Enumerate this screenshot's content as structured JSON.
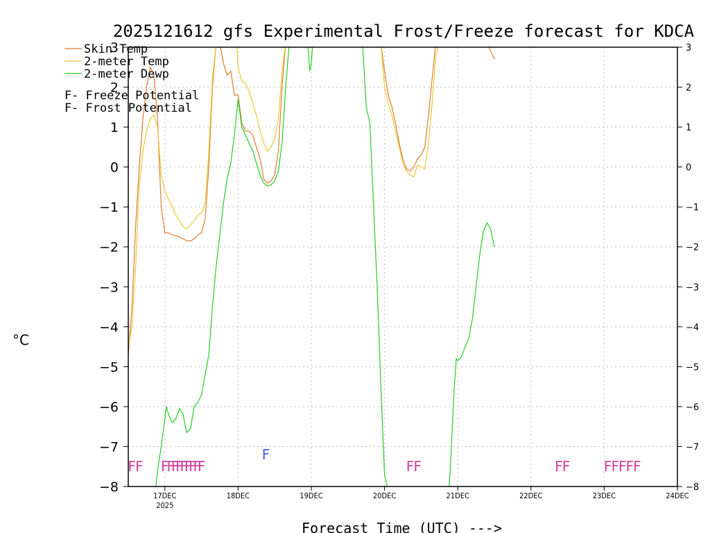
{
  "chart_data": {
    "type": "line",
    "title": "2025121612 gfs Experimental Frost/Freeze forecast for KDCA",
    "ylabel": "°C",
    "xlabel": "Forecast Time (UTC) --->",
    "ylim": [
      -8,
      3
    ],
    "xlim": [
      16.5,
      24.0
    ],
    "y_ticks": [
      -8,
      -7,
      -6,
      -5,
      -4,
      -3,
      -2,
      -1,
      0,
      1,
      2,
      3
    ],
    "x_ticks": [
      {
        "x": 17,
        "label": "17DEC",
        "sublabel": "2025"
      },
      {
        "x": 18,
        "label": "18DEC",
        "sublabel": ""
      },
      {
        "x": 19,
        "label": "19DEC",
        "sublabel": ""
      },
      {
        "x": 20,
        "label": "20DEC",
        "sublabel": ""
      },
      {
        "x": 21,
        "label": "21DEC",
        "sublabel": ""
      },
      {
        "x": 22,
        "label": "22DEC",
        "sublabel": ""
      },
      {
        "x": 23,
        "label": "23DEC",
        "sublabel": ""
      },
      {
        "x": 24,
        "label": "24DEC",
        "sublabel": ""
      }
    ],
    "grid": true,
    "legend": {
      "position": "top-left",
      "series": [
        {
          "label": "Skin Temp",
          "color": "#e07a30"
        },
        {
          "label": "2-meter Temp",
          "color": "#e8c830"
        },
        {
          "label": "2-meter Dewp",
          "color": "#22cc22"
        }
      ],
      "markers": [
        {
          "symbol": "F",
          "text": " - Freeze Potential",
          "color": "#d040a0"
        },
        {
          "symbol": "F",
          "text": " - Frost Potential",
          "color": "#4060d0"
        }
      ]
    },
    "series": [
      {
        "name": "Skin Temp",
        "color": "#e07a30",
        "points": [
          [
            16.5,
            -4.7
          ],
          [
            16.55,
            -3.5
          ],
          [
            16.6,
            -1.5
          ],
          [
            16.65,
            0.0
          ],
          [
            16.7,
            1.2
          ],
          [
            16.75,
            2.0
          ],
          [
            16.8,
            2.5
          ],
          [
            16.85,
            2.3
          ],
          [
            16.9,
            1.2
          ],
          [
            16.95,
            -1.0
          ],
          [
            17.0,
            -1.65
          ],
          [
            17.05,
            -1.65
          ],
          [
            17.1,
            -1.7
          ],
          [
            17.15,
            -1.72
          ],
          [
            17.2,
            -1.75
          ],
          [
            17.25,
            -1.8
          ],
          [
            17.3,
            -1.85
          ],
          [
            17.35,
            -1.85
          ],
          [
            17.4,
            -1.8
          ],
          [
            17.45,
            -1.7
          ],
          [
            17.5,
            -1.65
          ],
          [
            17.55,
            -1.3
          ],
          [
            17.6,
            0.0
          ],
          [
            17.65,
            2.0
          ],
          [
            17.7,
            3.1
          ],
          [
            17.75,
            3.1
          ],
          [
            17.8,
            2.6
          ],
          [
            17.85,
            2.3
          ],
          [
            17.9,
            2.4
          ],
          [
            17.95,
            1.8
          ],
          [
            18.0,
            1.8
          ],
          [
            18.05,
            1.1
          ],
          [
            18.1,
            0.9
          ],
          [
            18.15,
            0.9
          ],
          [
            18.2,
            0.8
          ],
          [
            18.25,
            0.5
          ],
          [
            18.3,
            0.2
          ],
          [
            18.35,
            -0.3
          ],
          [
            18.4,
            -0.4
          ],
          [
            18.45,
            -0.35
          ],
          [
            18.5,
            -0.2
          ],
          [
            18.55,
            0.4
          ],
          [
            18.6,
            2.0
          ],
          [
            18.65,
            3.1
          ],
          [
            19.95,
            3.1
          ],
          [
            20.0,
            2.4
          ],
          [
            20.05,
            1.8
          ],
          [
            20.1,
            1.5
          ],
          [
            20.15,
            1.1
          ],
          [
            20.2,
            0.6
          ],
          [
            20.25,
            0.2
          ],
          [
            20.3,
            -0.05
          ],
          [
            20.35,
            -0.1
          ],
          [
            20.4,
            0.0
          ],
          [
            20.45,
            0.2
          ],
          [
            20.5,
            0.3
          ],
          [
            20.55,
            0.5
          ],
          [
            20.6,
            1.3
          ],
          [
            20.65,
            2.2
          ],
          [
            20.7,
            3.1
          ],
          [
            21.4,
            3.1
          ],
          [
            21.45,
            2.9
          ],
          [
            21.5,
            2.7
          ]
        ]
      },
      {
        "name": "2-meter Temp",
        "color": "#e8c830",
        "points": [
          [
            16.5,
            -4.5
          ],
          [
            16.55,
            -4.0
          ],
          [
            16.6,
            -2.5
          ],
          [
            16.65,
            -0.5
          ],
          [
            16.7,
            0.4
          ],
          [
            16.75,
            0.9
          ],
          [
            16.8,
            1.2
          ],
          [
            16.85,
            1.3
          ],
          [
            16.9,
            1.0
          ],
          [
            16.95,
            -0.2
          ],
          [
            17.0,
            -0.6
          ],
          [
            17.05,
            -0.8
          ],
          [
            17.1,
            -1.0
          ],
          [
            17.15,
            -1.2
          ],
          [
            17.2,
            -1.35
          ],
          [
            17.25,
            -1.5
          ],
          [
            17.3,
            -1.55
          ],
          [
            17.35,
            -1.45
          ],
          [
            17.4,
            -1.35
          ],
          [
            17.45,
            -1.2
          ],
          [
            17.5,
            -1.15
          ],
          [
            17.55,
            -0.9
          ],
          [
            17.6,
            0.4
          ],
          [
            17.65,
            2.2
          ],
          [
            17.7,
            3.1
          ],
          [
            17.98,
            3.1
          ],
          [
            18.0,
            2.5
          ],
          [
            18.05,
            2.15
          ],
          [
            18.1,
            2.1
          ],
          [
            18.15,
            1.9
          ],
          [
            18.2,
            1.6
          ],
          [
            18.25,
            1.3
          ],
          [
            18.3,
            0.9
          ],
          [
            18.35,
            0.6
          ],
          [
            18.4,
            0.4
          ],
          [
            18.45,
            0.5
          ],
          [
            18.5,
            0.7
          ],
          [
            18.55,
            1.2
          ],
          [
            18.6,
            2.4
          ],
          [
            18.65,
            3.1
          ],
          [
            19.95,
            3.1
          ],
          [
            20.0,
            2.0
          ],
          [
            20.05,
            1.6
          ],
          [
            20.1,
            1.3
          ],
          [
            20.15,
            0.9
          ],
          [
            20.2,
            0.5
          ],
          [
            20.25,
            0.1
          ],
          [
            20.3,
            -0.1
          ],
          [
            20.35,
            -0.2
          ],
          [
            20.4,
            -0.25
          ],
          [
            20.45,
            0.05
          ],
          [
            20.5,
            0.0
          ],
          [
            20.55,
            -0.05
          ],
          [
            20.6,
            0.6
          ],
          [
            20.65,
            1.6
          ],
          [
            20.7,
            2.8
          ],
          [
            20.75,
            3.1
          ]
        ]
      },
      {
        "name": "2-meter Dewp",
        "color": "#22cc22",
        "points": [
          [
            16.87,
            -8.1
          ],
          [
            16.9,
            -7.6
          ],
          [
            16.95,
            -7.0
          ],
          [
            17.0,
            -6.3
          ],
          [
            17.02,
            -6.0
          ],
          [
            17.05,
            -6.2
          ],
          [
            17.1,
            -6.4
          ],
          [
            17.15,
            -6.3
          ],
          [
            17.2,
            -6.05
          ],
          [
            17.25,
            -6.2
          ],
          [
            17.28,
            -6.5
          ],
          [
            17.3,
            -6.65
          ],
          [
            17.35,
            -6.55
          ],
          [
            17.4,
            -6.0
          ],
          [
            17.45,
            -5.9
          ],
          [
            17.5,
            -5.7
          ],
          [
            17.55,
            -5.2
          ],
          [
            17.6,
            -4.7
          ],
          [
            17.65,
            -3.5
          ],
          [
            17.7,
            -2.5
          ],
          [
            17.75,
            -1.7
          ],
          [
            17.8,
            -0.9
          ],
          [
            17.85,
            -0.3
          ],
          [
            17.9,
            0.1
          ],
          [
            17.95,
            0.8
          ],
          [
            18.0,
            1.7
          ],
          [
            18.05,
            1.0
          ],
          [
            18.1,
            0.8
          ],
          [
            18.15,
            0.6
          ],
          [
            18.2,
            0.4
          ],
          [
            18.25,
            0.1
          ],
          [
            18.3,
            -0.2
          ],
          [
            18.35,
            -0.4
          ],
          [
            18.4,
            -0.48
          ],
          [
            18.45,
            -0.45
          ],
          [
            18.5,
            -0.35
          ],
          [
            18.55,
            -0.1
          ],
          [
            18.6,
            0.6
          ],
          [
            18.65,
            2.0
          ],
          [
            18.7,
            3.1
          ],
          [
            18.95,
            3.1
          ],
          [
            18.98,
            2.4
          ],
          [
            19.0,
            2.6
          ],
          [
            19.02,
            3.1
          ],
          [
            19.7,
            3.1
          ],
          [
            19.75,
            1.5
          ],
          [
            19.8,
            1.1
          ],
          [
            19.85,
            -1.0
          ],
          [
            19.9,
            -3.0
          ],
          [
            19.95,
            -5.5
          ],
          [
            20.0,
            -7.7
          ],
          [
            20.05,
            -8.1
          ],
          [
            20.88,
            -8.1
          ],
          [
            20.9,
            -7.5
          ],
          [
            20.95,
            -5.6
          ],
          [
            20.98,
            -4.8
          ],
          [
            21.0,
            -4.85
          ],
          [
            21.05,
            -4.75
          ],
          [
            21.1,
            -4.5
          ],
          [
            21.15,
            -4.3
          ],
          [
            21.2,
            -3.8
          ],
          [
            21.25,
            -3.0
          ],
          [
            21.3,
            -2.2
          ],
          [
            21.35,
            -1.6
          ],
          [
            21.4,
            -1.4
          ],
          [
            21.45,
            -1.55
          ],
          [
            21.5,
            -2.0
          ]
        ]
      }
    ],
    "markers": [
      {
        "label": "freeze",
        "color": "#d040a0",
        "y": -7.5,
        "x": [
          16.55,
          16.65,
          17.0,
          17.08,
          17.14,
          17.2,
          17.26,
          17.32,
          17.38,
          17.44,
          17.5,
          20.35,
          20.45,
          22.38,
          22.48,
          23.05,
          23.15,
          23.25,
          23.35,
          23.45
        ]
      },
      {
        "label": "frost",
        "color": "#4060d0",
        "y": -7.2,
        "x": [
          18.38
        ]
      }
    ]
  }
}
